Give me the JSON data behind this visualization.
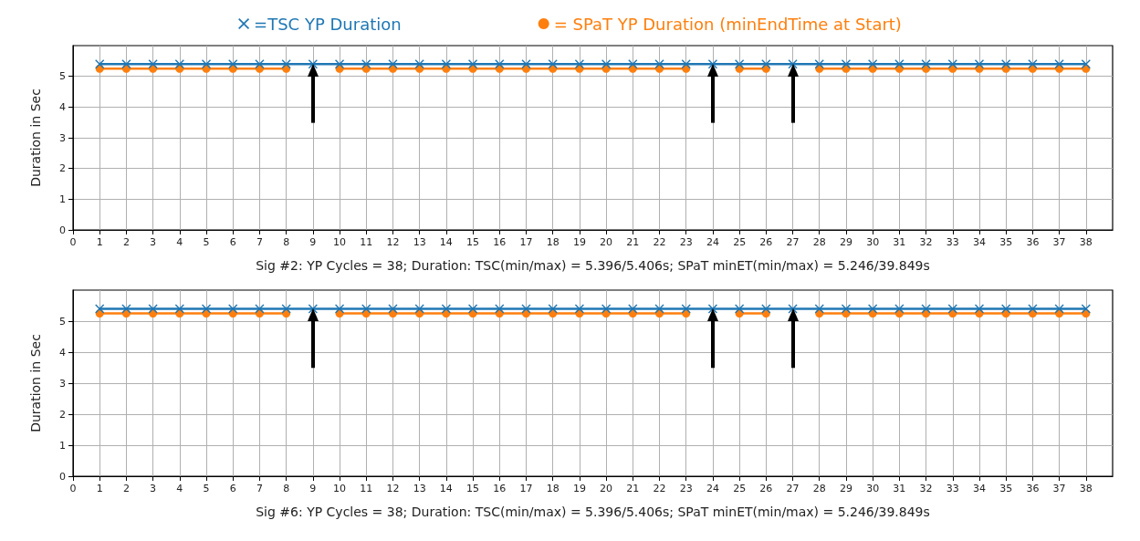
{
  "chart_data": [
    {
      "type": "line",
      "xlabel": "Sig #2: YP Cycles = 38; Duration: TSC(min/max) = 5.396/5.406s; SPaT minET(min/max) = 5.246/39.849s",
      "ylabel": "Duration in Sec",
      "x": [
        1,
        2,
        3,
        4,
        5,
        6,
        7,
        8,
        9,
        10,
        11,
        12,
        13,
        14,
        15,
        16,
        17,
        18,
        19,
        20,
        21,
        22,
        23,
        24,
        25,
        26,
        27,
        28,
        29,
        30,
        31,
        32,
        33,
        34,
        35,
        36,
        37,
        38
      ],
      "series": [
        {
          "name": "=TSC YP Duration",
          "color": "#1f77b4",
          "marker": "cross",
          "values": [
            5.4,
            5.4,
            5.4,
            5.4,
            5.4,
            5.4,
            5.4,
            5.4,
            5.4,
            5.4,
            5.4,
            5.4,
            5.4,
            5.4,
            5.4,
            5.4,
            5.4,
            5.4,
            5.4,
            5.4,
            5.4,
            5.4,
            5.4,
            5.4,
            5.4,
            5.4,
            5.4,
            5.4,
            5.4,
            5.4,
            5.4,
            5.4,
            5.4,
            5.4,
            5.4,
            5.4,
            5.4,
            5.4
          ]
        },
        {
          "name": "= SPaT YP Duration (minEndTime at Start)",
          "color": "#ff7f0e",
          "marker": "circle",
          "values": [
            5.25,
            5.25,
            5.25,
            5.25,
            5.25,
            5.25,
            5.25,
            5.25,
            null,
            5.25,
            5.25,
            5.25,
            5.25,
            5.25,
            5.25,
            5.25,
            5.25,
            5.25,
            5.25,
            5.25,
            5.25,
            5.25,
            5.25,
            null,
            5.25,
            5.25,
            null,
            5.25,
            5.25,
            5.25,
            5.25,
            5.25,
            5.25,
            5.25,
            5.25,
            5.25,
            5.25,
            5.25
          ]
        }
      ],
      "xlim": [
        0,
        39
      ],
      "xticks": [
        0,
        1,
        2,
        3,
        4,
        5,
        6,
        7,
        8,
        9,
        10,
        11,
        12,
        13,
        14,
        15,
        16,
        17,
        18,
        19,
        20,
        21,
        22,
        23,
        24,
        25,
        26,
        27,
        28,
        29,
        30,
        31,
        32,
        33,
        34,
        35,
        36,
        37,
        38
      ],
      "ylim": [
        0,
        6
      ],
      "yticks": [
        0,
        1,
        2,
        3,
        4,
        5
      ],
      "grid": true,
      "legend": "top",
      "line_style": "solid"
    },
    {
      "type": "line",
      "xlabel": "Sig #6: YP Cycles = 38; Duration: TSC(min/max) = 5.396/5.406s; SPaT minET(min/max) = 5.246/39.849s",
      "ylabel": "Duration in Sec",
      "x": [
        1,
        2,
        3,
        4,
        5,
        6,
        7,
        8,
        9,
        10,
        11,
        12,
        13,
        14,
        15,
        16,
        17,
        18,
        19,
        20,
        21,
        22,
        23,
        24,
        25,
        26,
        27,
        28,
        29,
        30,
        31,
        32,
        33,
        34,
        35,
        36,
        37,
        38
      ],
      "series": [
        {
          "color": "#1f77b4",
          "marker": "cross",
          "values": [
            5.4,
            5.4,
            5.4,
            5.4,
            5.4,
            5.4,
            5.4,
            5.4,
            5.4,
            5.4,
            5.4,
            5.4,
            5.4,
            5.4,
            5.4,
            5.4,
            5.4,
            5.4,
            5.4,
            5.4,
            5.4,
            5.4,
            5.4,
            5.4,
            5.4,
            5.4,
            5.4,
            5.4,
            5.4,
            5.4,
            5.4,
            5.4,
            5.4,
            5.4,
            5.4,
            5.4,
            5.4,
            5.4
          ]
        },
        {
          "color": "#ff7f0e",
          "marker": "circle",
          "values": [
            5.25,
            5.25,
            5.25,
            5.25,
            5.25,
            5.25,
            5.25,
            5.25,
            null,
            5.25,
            5.25,
            5.25,
            5.25,
            5.25,
            5.25,
            5.25,
            5.25,
            5.25,
            5.25,
            5.25,
            5.25,
            5.25,
            5.25,
            null,
            5.25,
            5.25,
            null,
            5.25,
            5.25,
            5.25,
            5.25,
            5.25,
            5.25,
            5.25,
            5.25,
            5.25,
            5.25,
            5.25
          ]
        }
      ],
      "xlim": [
        0,
        39
      ],
      "xticks": [
        0,
        1,
        2,
        3,
        4,
        5,
        6,
        7,
        8,
        9,
        10,
        11,
        12,
        13,
        14,
        15,
        16,
        17,
        18,
        19,
        20,
        21,
        22,
        23,
        24,
        25,
        26,
        27,
        28,
        29,
        30,
        31,
        32,
        33,
        34,
        35,
        36,
        37,
        38
      ],
      "ylim": [
        0,
        6
      ],
      "yticks": [
        0,
        1,
        2,
        3,
        4,
        5
      ],
      "grid": true,
      "legend": false,
      "line_style": "solid"
    }
  ]
}
